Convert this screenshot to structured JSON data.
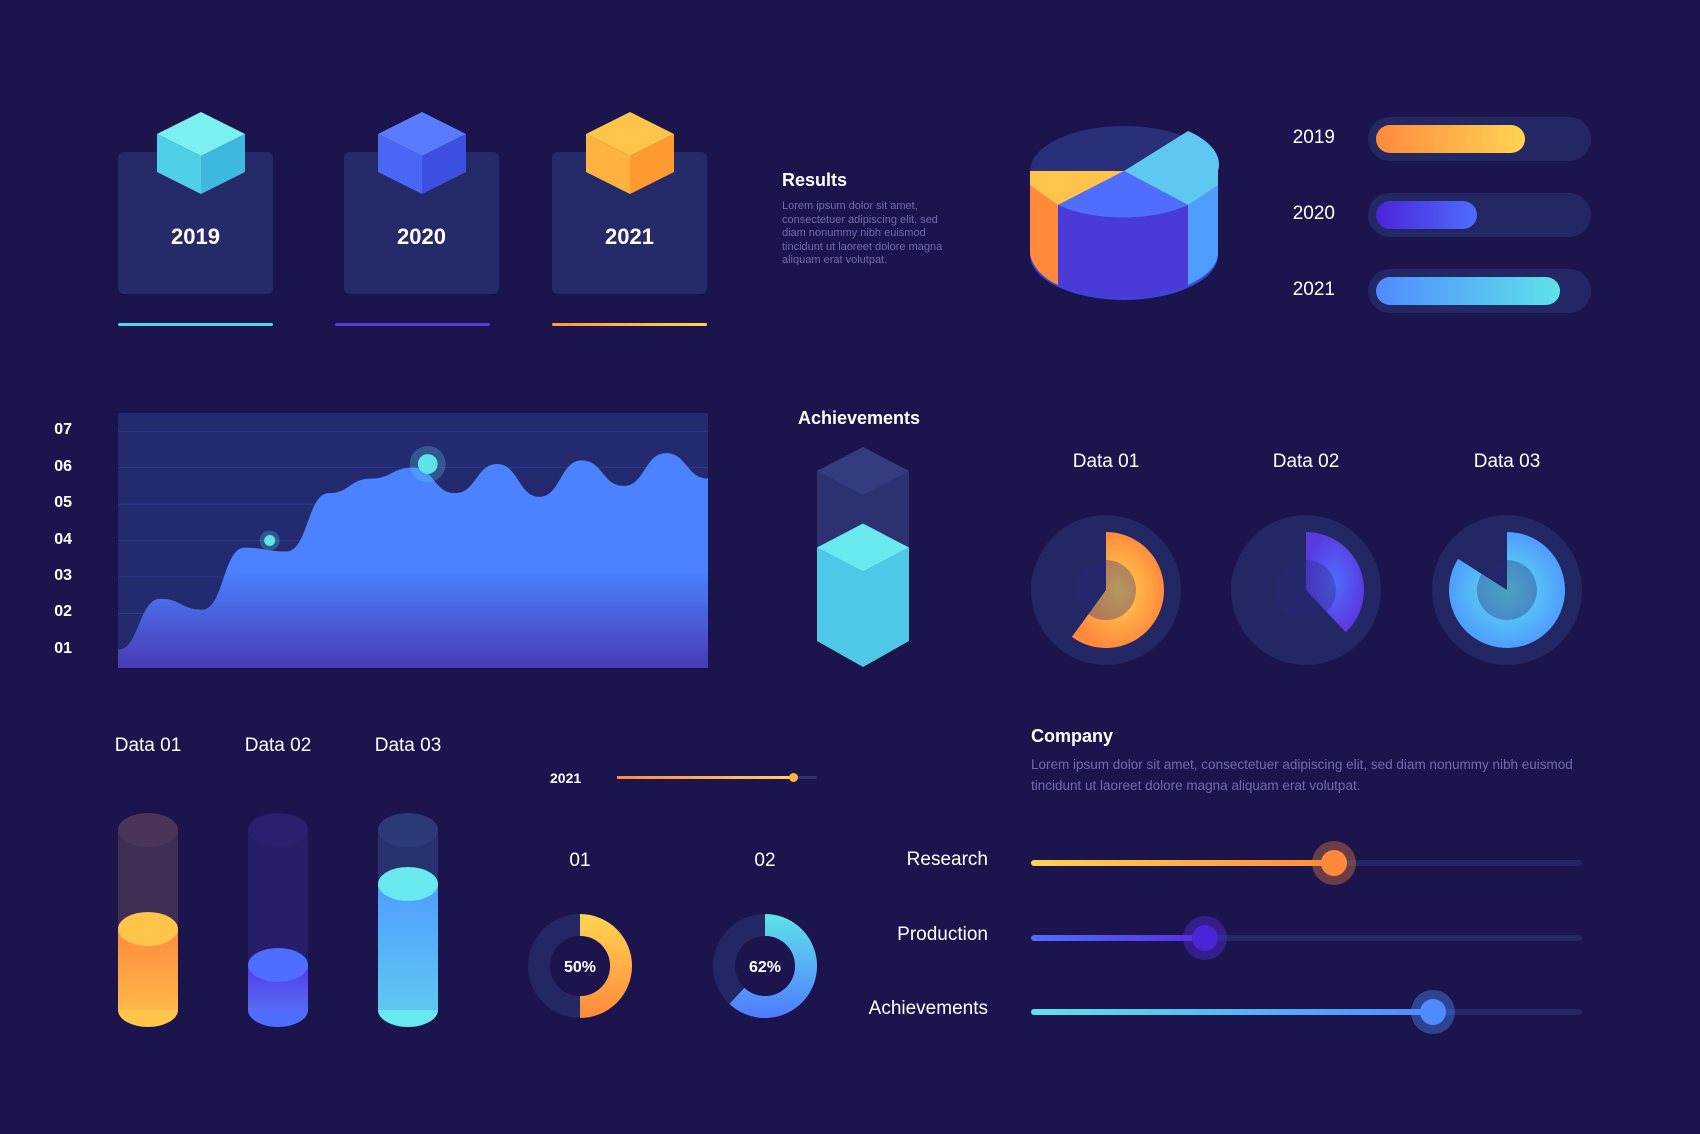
{
  "colors": {
    "background": "#1c154d",
    "orange": "#ff9a3c",
    "yellow": "#ffd452",
    "purple": "#5a2de0",
    "blue": "#4f8bff",
    "cyan": "#5ee3e8"
  },
  "year_cards": [
    {
      "label": "2019",
      "icon": "cube-icon",
      "color": "#5ee3e8"
    },
    {
      "label": "2020",
      "icon": "cube-icon",
      "color": "#4f6dff"
    },
    {
      "label": "2021",
      "icon": "cube-icon",
      "color": "#ffb23f"
    }
  ],
  "results": {
    "title": "Results",
    "text": "Lorem ipsum dolor sit amet, consectetuer adipiscing elit, sed diam nonummy nibh euismod tincidunt ut laoreet dolore magna aliquam erat volutpat."
  },
  "achievements_block": {
    "title": "Achievements",
    "level": 0.55
  },
  "company": {
    "title": "Company",
    "text": "Lorem ipsum dolor sit amet, consectetuer adipiscing elit, sed diam nonummy nibh euismod tincidunt ut laoreet dolore magna aliquam erat volutpat."
  },
  "timeline": {
    "label": "2021",
    "value": 0.88
  },
  "chart_data": [
    {
      "type": "bar",
      "orientation": "horizontal",
      "categories": [
        "2019",
        "2020",
        "2021"
      ],
      "values": [
        0.72,
        0.49,
        0.89
      ],
      "colors": [
        "#ff9a3c",
        "#5a2de0",
        "#4f8bff"
      ]
    },
    {
      "type": "pie",
      "style": "3d",
      "values": [
        0.35,
        0.4,
        0.25
      ]
    },
    {
      "type": "area",
      "yticks": [
        "01",
        "02",
        "03",
        "04",
        "05",
        "06",
        "07"
      ],
      "ylim": [
        0.5,
        7.5
      ],
      "x": [
        0,
        1,
        2,
        3,
        4,
        5,
        6,
        7,
        8,
        9,
        10,
        11,
        12,
        13,
        14
      ],
      "y": [
        1.0,
        2.4,
        2.1,
        3.8,
        3.7,
        5.3,
        5.7,
        6.0,
        5.3,
        6.1,
        5.2,
        6.2,
        5.5,
        6.4,
        5.7
      ],
      "highlights": [
        4.0,
        6.1
      ]
    },
    {
      "type": "pie",
      "style": "radial",
      "categories": [
        "Data 01",
        "Data 02",
        "Data 03"
      ],
      "values": [
        0.6,
        0.38,
        0.84
      ],
      "colors": [
        "#ff9a3c",
        "#4f6dff",
        "#4fc3f5"
      ]
    },
    {
      "type": "bar",
      "style": "cylinder",
      "categories": [
        "Data 01",
        "Data 02",
        "Data 03"
      ],
      "values": [
        0.45,
        0.25,
        0.7
      ],
      "colors": [
        "#ff9a3c",
        "#5a2de0",
        "#4fc3f5"
      ]
    },
    {
      "type": "pie",
      "style": "donut",
      "categories": [
        "01",
        "02"
      ],
      "values": [
        50,
        62
      ],
      "labels": [
        "50%",
        "62%"
      ],
      "colors": [
        "#ff9a3c",
        "#4fc3f5"
      ]
    },
    {
      "type": "bar",
      "style": "slider",
      "categories": [
        "Research",
        "Production",
        "Achievements"
      ],
      "values": [
        0.55,
        0.315,
        0.73
      ],
      "colors": [
        "#ff8a3c",
        "#5a2de0",
        "#4f8bff"
      ]
    }
  ]
}
